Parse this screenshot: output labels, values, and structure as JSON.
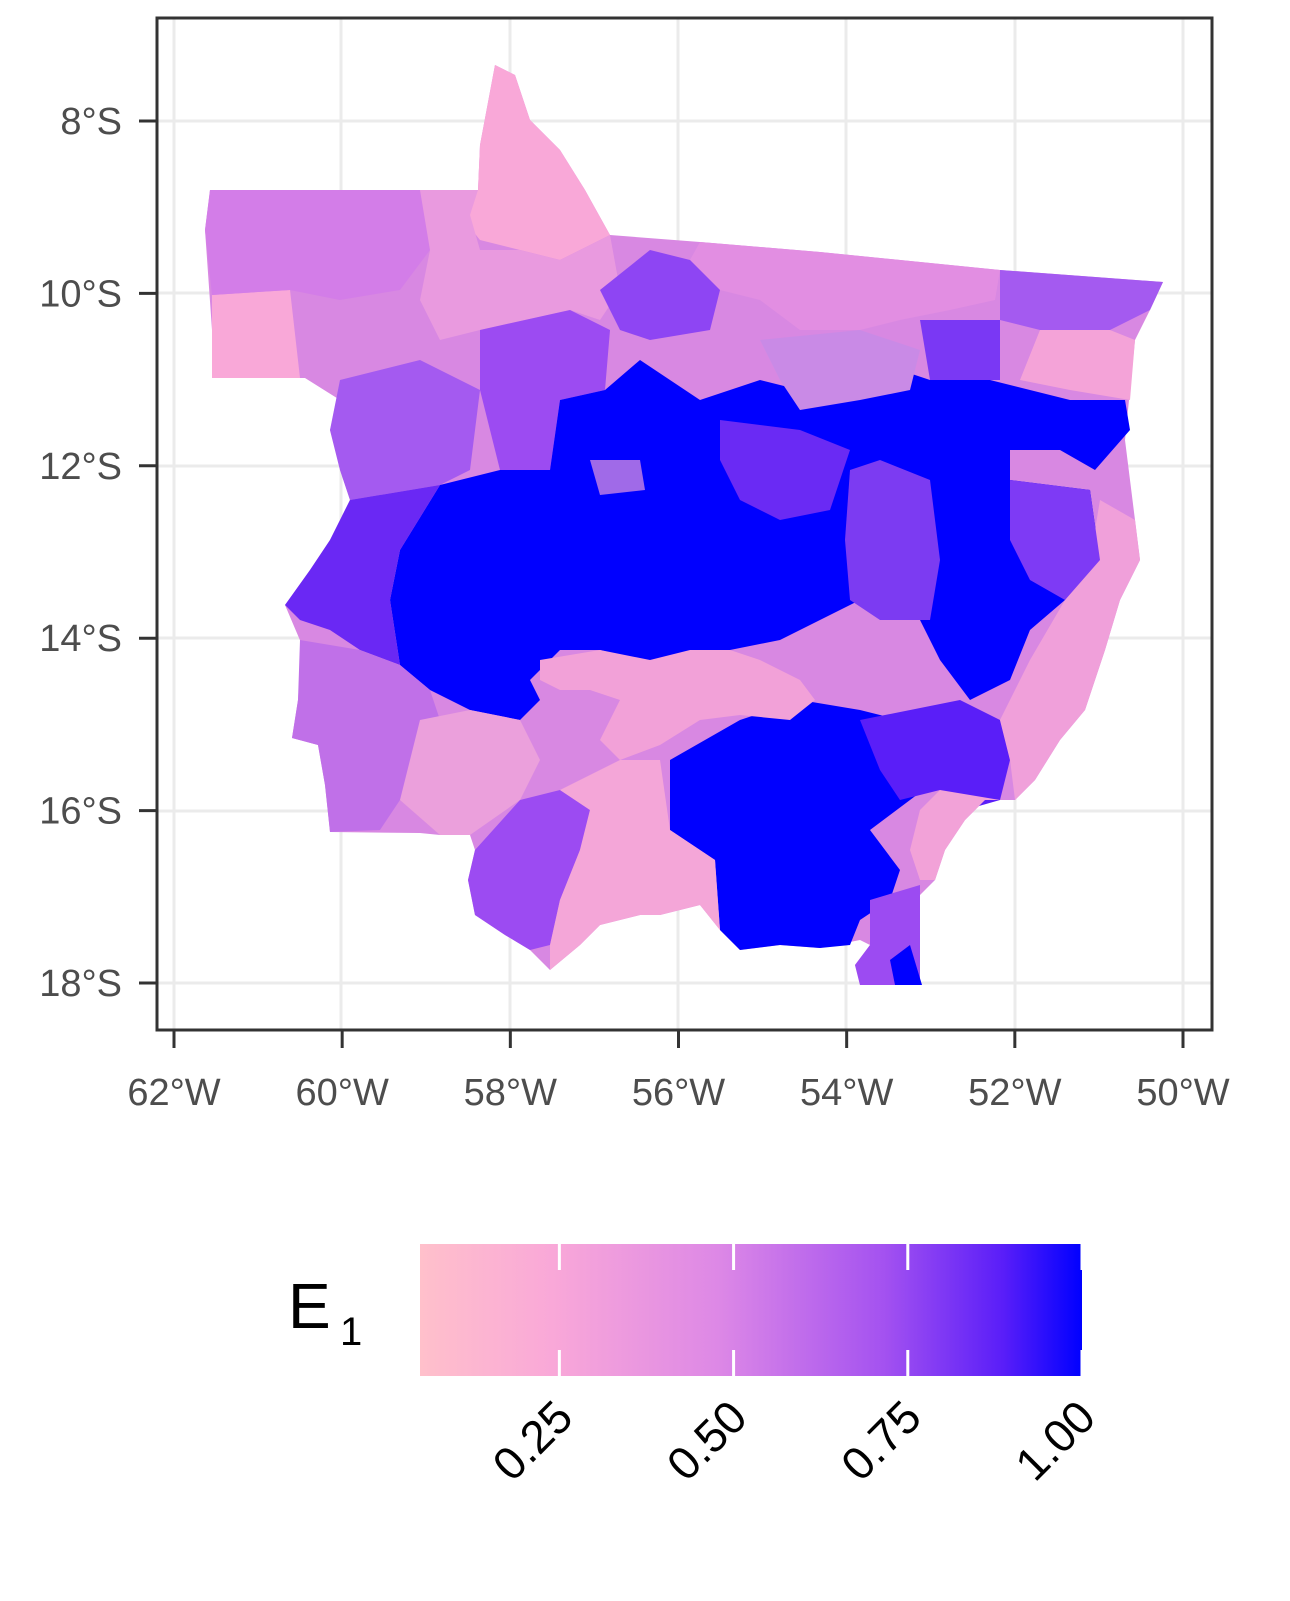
{
  "map": {
    "region": "Mato Grosso",
    "fill_scale": "value 0 to 1, pink (#FFC0CB) to blue (#0000FF)",
    "x_axis": {
      "ticks": [
        "62°W",
        "60°W",
        "58°W",
        "56°W",
        "54°W",
        "52°W",
        "50°W"
      ],
      "values": [
        -62,
        -60,
        -58,
        -56,
        -54,
        -52,
        -50
      ],
      "range": [
        -62.2,
        -49.65
      ]
    },
    "y_axis": {
      "ticks": [
        "8°S",
        "10°S",
        "12°S",
        "14°S",
        "16°S",
        "18°S"
      ],
      "values": [
        -8,
        -10,
        -12,
        -14,
        -16,
        -18
      ],
      "range": [
        -18.55,
        -6.7
      ]
    },
    "grid": true,
    "colors": {
      "low": "#FFC0CB",
      "mid_low": "#F2A1D8",
      "mid": "#D37DE8",
      "mid_high": "#9C4BF2",
      "high": "#0000FF"
    }
  },
  "legend": {
    "title_main": "E",
    "title_sub": "1",
    "position": "bottom",
    "ticks": [
      "0.25",
      "0.50",
      "0.75",
      "1.00"
    ],
    "tick_values": [
      0.25,
      0.5,
      0.75,
      1.0
    ],
    "range": [
      0.05,
      1.0
    ]
  }
}
